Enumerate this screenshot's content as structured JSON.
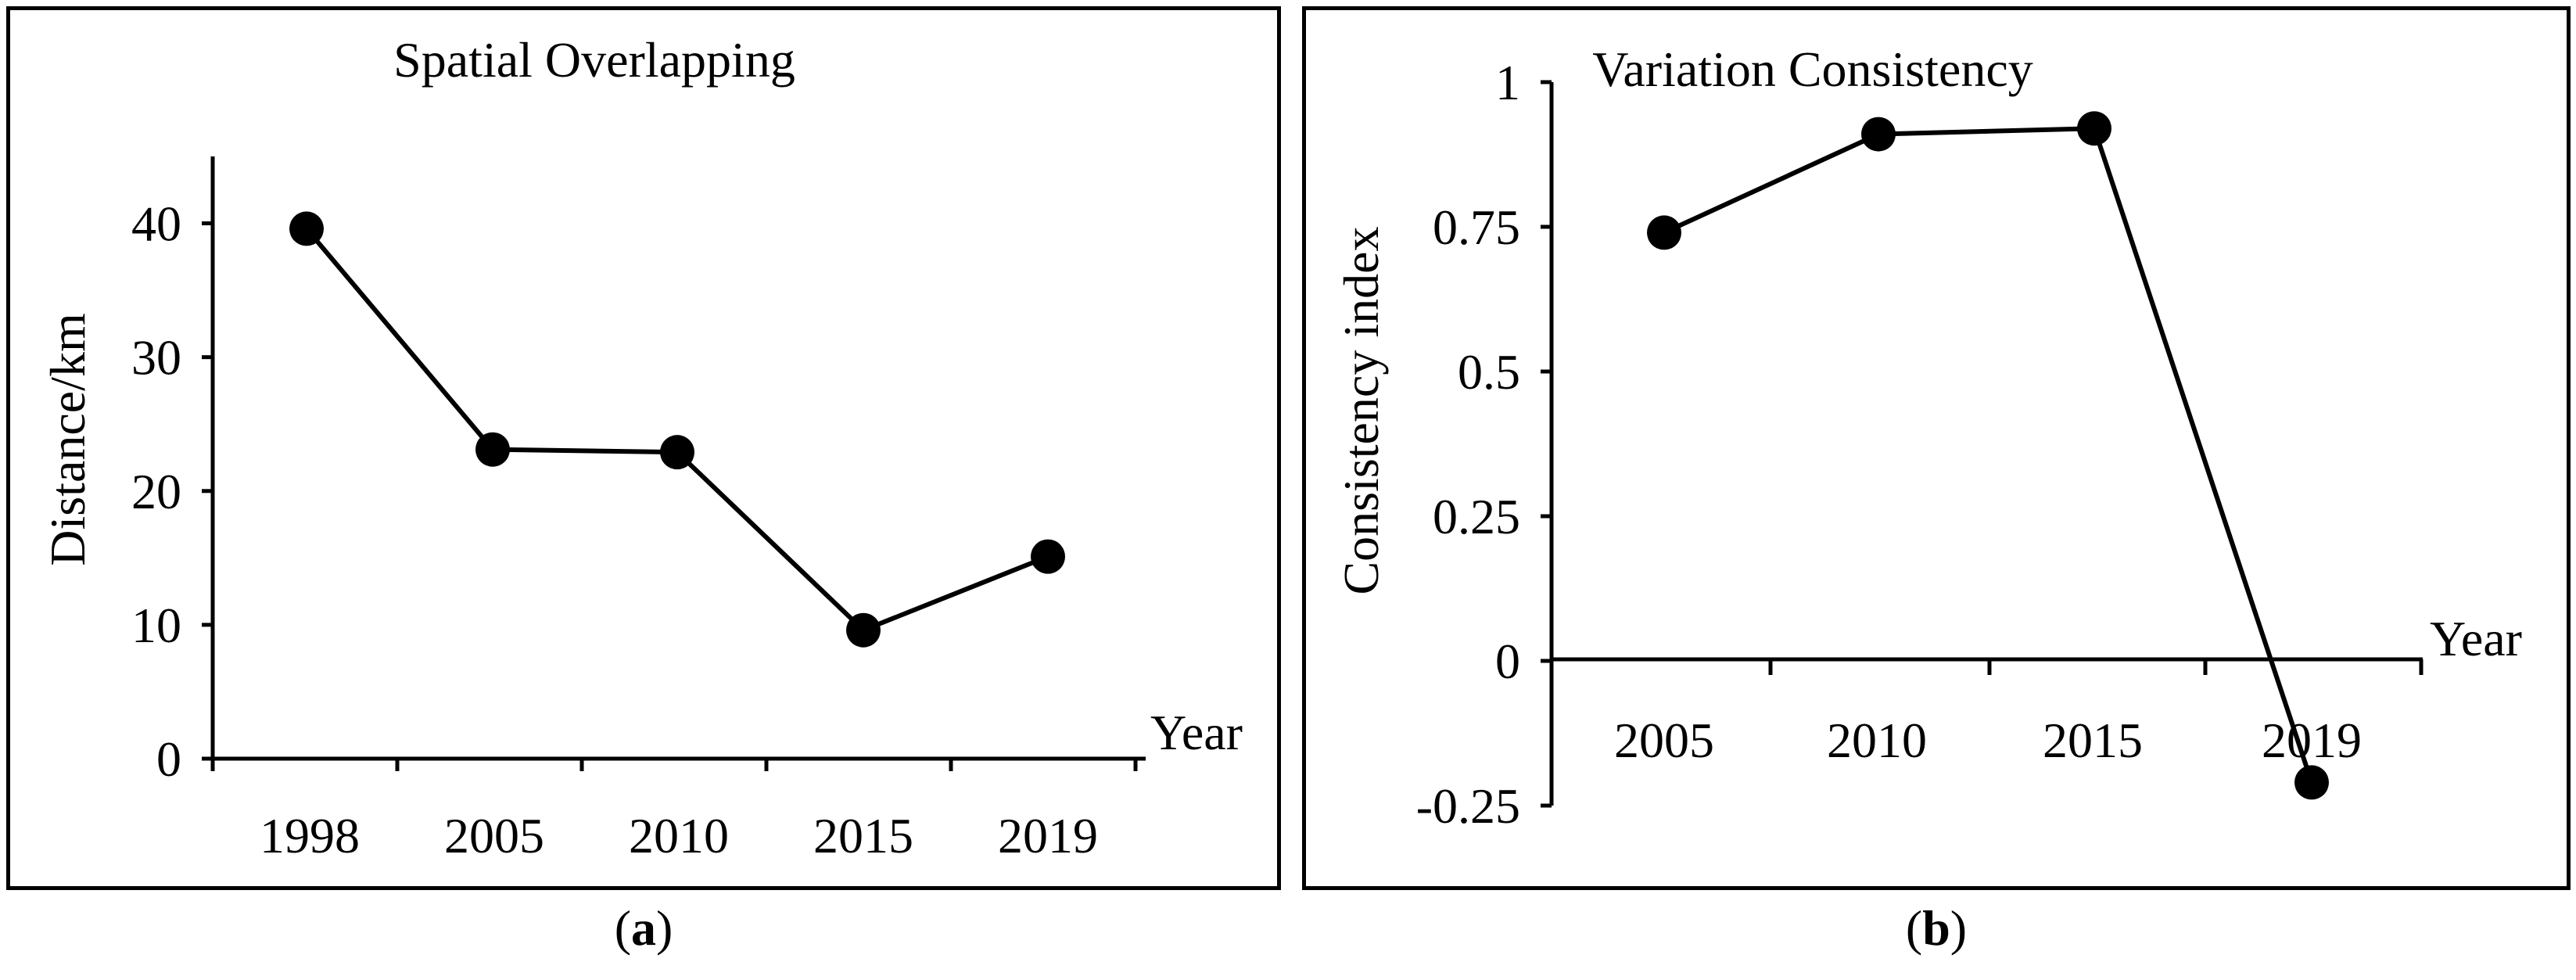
{
  "chart_data": [
    {
      "type": "line",
      "panel": "a",
      "title": "Spatial Overlapping",
      "xlabel": "Year",
      "ylabel": "Distance/km",
      "categories": [
        "1998",
        "2005",
        "2010",
        "2015",
        "2019"
      ],
      "series": [
        {
          "name": "Distance",
          "values": [
            39.6,
            23.1,
            22.9,
            9.6,
            15.1
          ]
        }
      ],
      "ylim": [
        0,
        45
      ],
      "yticks": [
        "0",
        "10",
        "20",
        "30",
        "40"
      ],
      "ytick_values": [
        0,
        10,
        20,
        30,
        40
      ],
      "grid": false,
      "caption_open": "(",
      "caption_letter": "a",
      "caption_close": ")"
    },
    {
      "type": "line",
      "panel": "b",
      "title": "Variation Consistency",
      "xlabel": "Year",
      "ylabel": "Consistency index",
      "categories": [
        "2005",
        "2010",
        "2015",
        "2019"
      ],
      "series": [
        {
          "name": "Consistency index",
          "values": [
            0.74,
            0.91,
            0.92,
            -0.21
          ]
        }
      ],
      "ylim": [
        -0.25,
        1
      ],
      "yticks": [
        "-0.25",
        "0",
        "0.25",
        "0.5",
        "0.75",
        "1"
      ],
      "ytick_values": [
        -0.25,
        0,
        0.25,
        0.5,
        0.75,
        1
      ],
      "grid": false,
      "caption_open": "(",
      "caption_letter": "b",
      "caption_close": ")"
    }
  ]
}
